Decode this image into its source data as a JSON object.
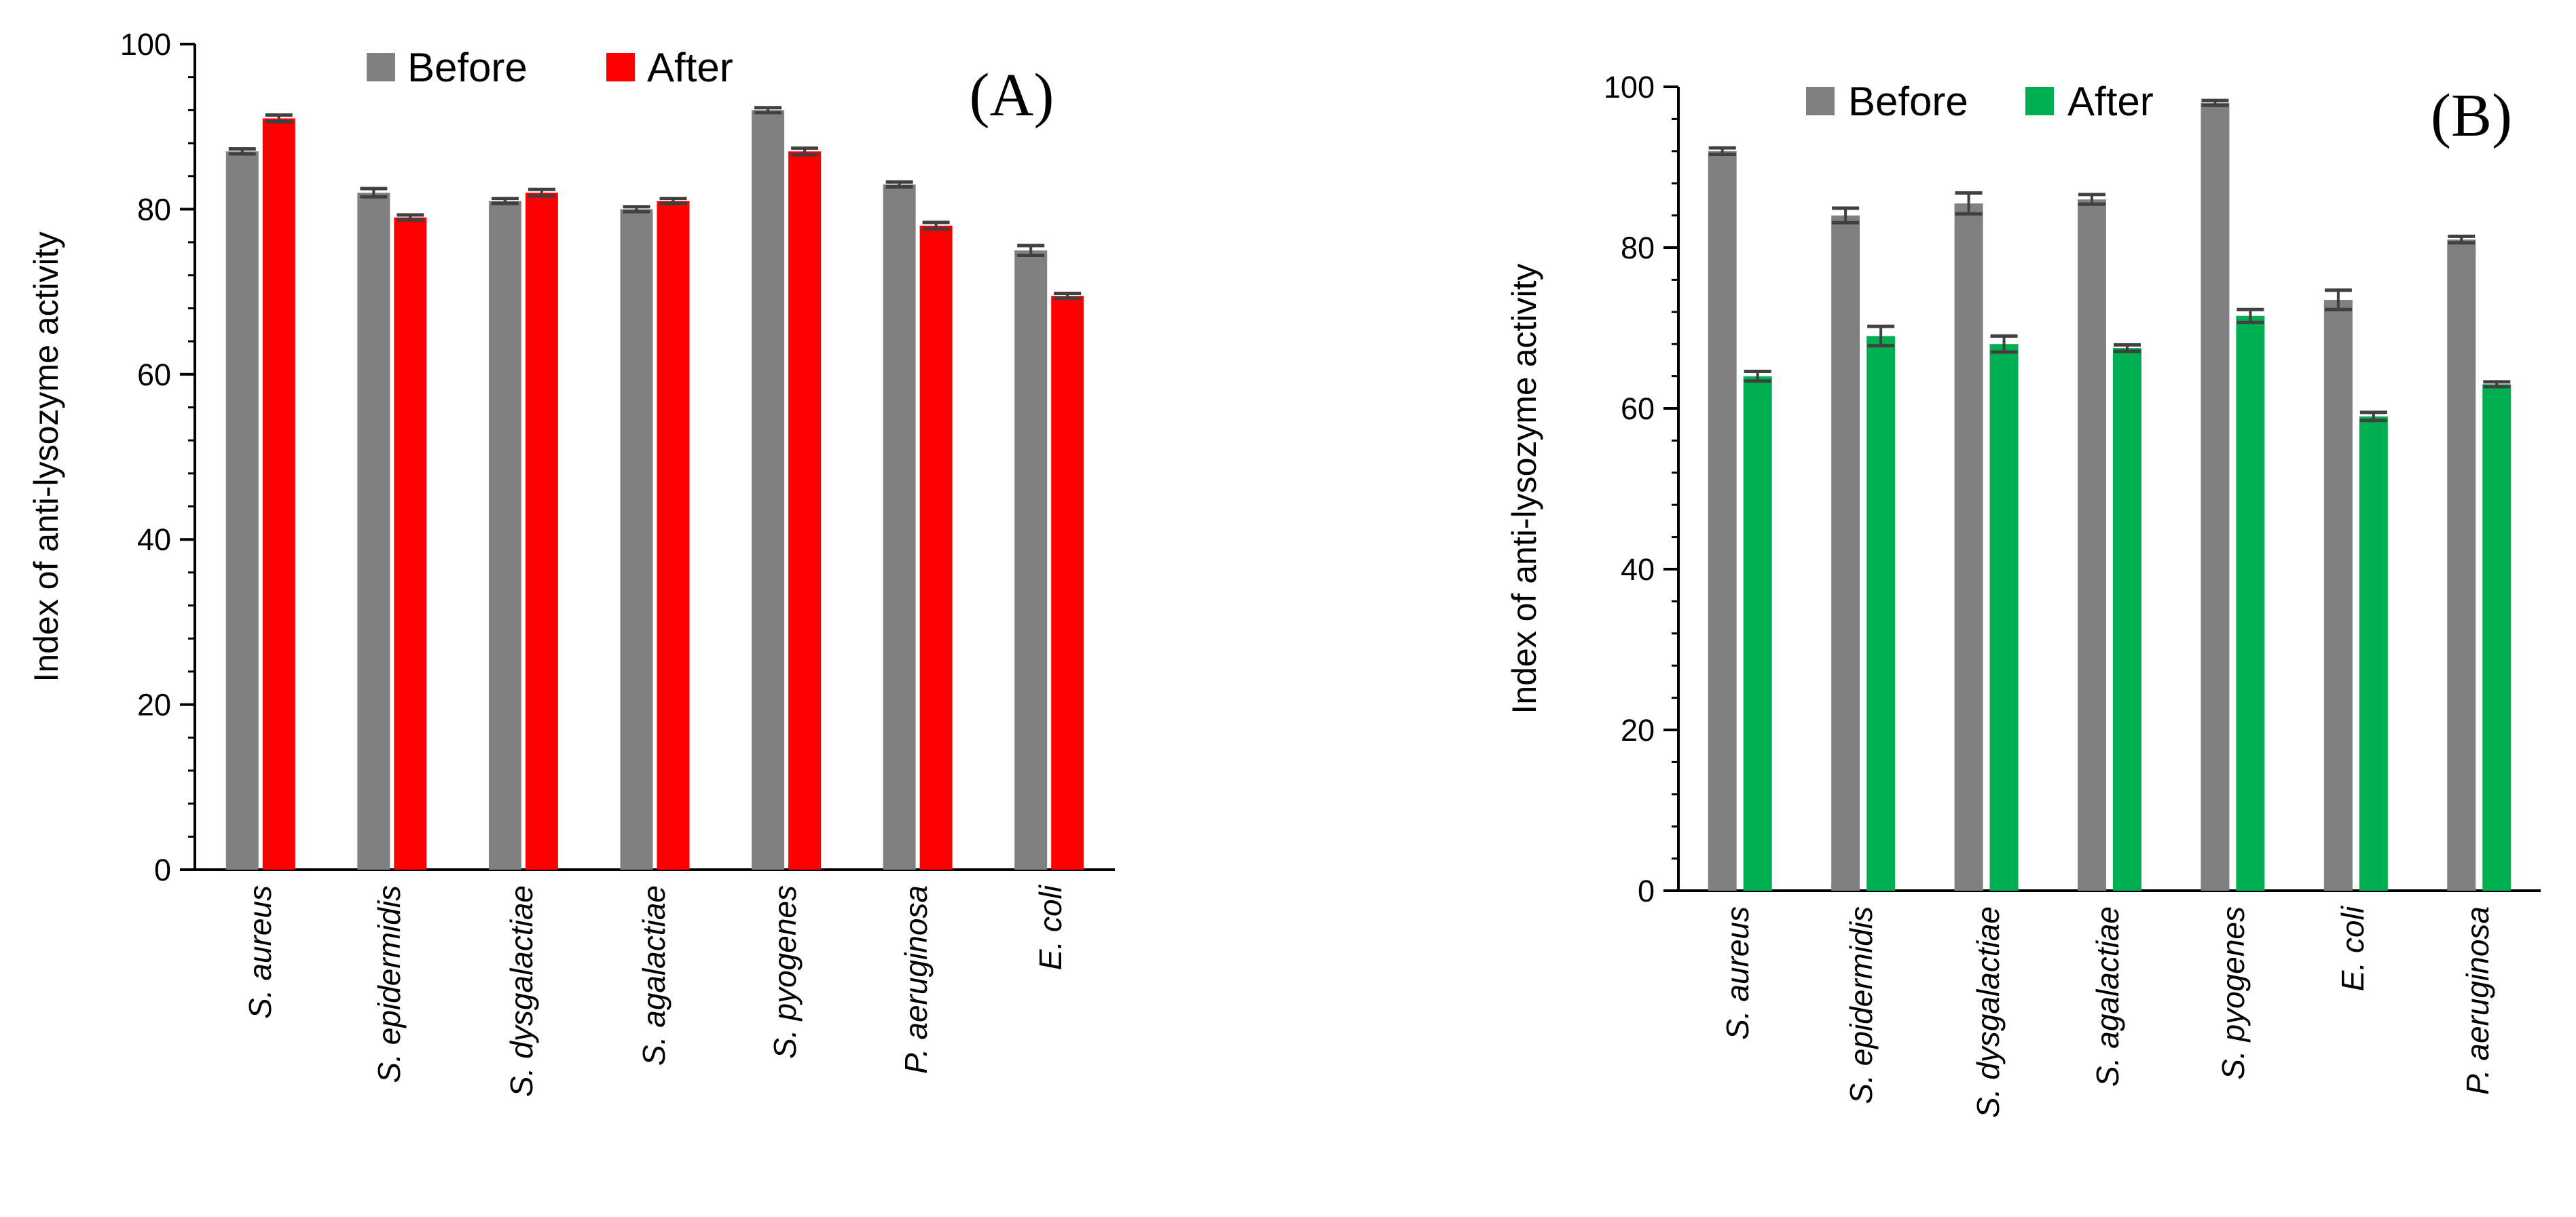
{
  "chart_data": [
    {
      "type": "bar",
      "panel_label": "(A)",
      "ylabel": "Index of anti-lysozyme activity",
      "xlabel": "",
      "ylim": [
        0,
        100
      ],
      "yticks": [
        0,
        20,
        40,
        60,
        80,
        100
      ],
      "y_minor_step": 4,
      "legend_position": "top-center",
      "categories": [
        "S. aureus",
        "S. epidermidis",
        "S. dysgalactiae",
        "S. agalactiae",
        "S. pyogenes",
        "P. aeruginosa",
        "E. coli"
      ],
      "series": [
        {
          "name": "Before",
          "color": "#808080",
          "values": [
            87,
            82,
            81,
            80,
            92,
            83,
            75
          ],
          "errors": [
            0.3,
            0.5,
            0.3,
            0.3,
            0.3,
            0.3,
            0.6
          ]
        },
        {
          "name": "After",
          "color": "#ff0000",
          "values": [
            91,
            79,
            82,
            81,
            87,
            78,
            69.5
          ],
          "errors": [
            0.4,
            0.3,
            0.4,
            0.3,
            0.4,
            0.4,
            0.3
          ]
        }
      ]
    },
    {
      "type": "bar",
      "panel_label": "(B)",
      "ylabel": "Index of anti-lysozyme activity",
      "xlabel": "",
      "ylim": [
        0,
        100
      ],
      "yticks": [
        0,
        20,
        40,
        60,
        80,
        100
      ],
      "y_minor_step": 4,
      "legend_position": "top-center",
      "categories": [
        "S. aureus",
        "S. epidermidis",
        "S. dysgalactiae",
        "S. agalactiae",
        "S. pyogenes",
        "E. coli",
        "P. aeruginosa"
      ],
      "series": [
        {
          "name": "Before",
          "color": "#808080",
          "values": [
            92,
            84,
            85.5,
            86,
            98,
            73.5,
            81
          ],
          "errors": [
            0.4,
            0.9,
            1.3,
            0.6,
            0.3,
            1.2,
            0.4
          ]
        },
        {
          "name": "After",
          "color": "#00b050",
          "values": [
            64,
            69,
            68,
            67.5,
            71.5,
            59,
            63
          ],
          "errors": [
            0.6,
            1.2,
            1.0,
            0.4,
            0.8,
            0.5,
            0.3
          ]
        }
      ]
    }
  ]
}
